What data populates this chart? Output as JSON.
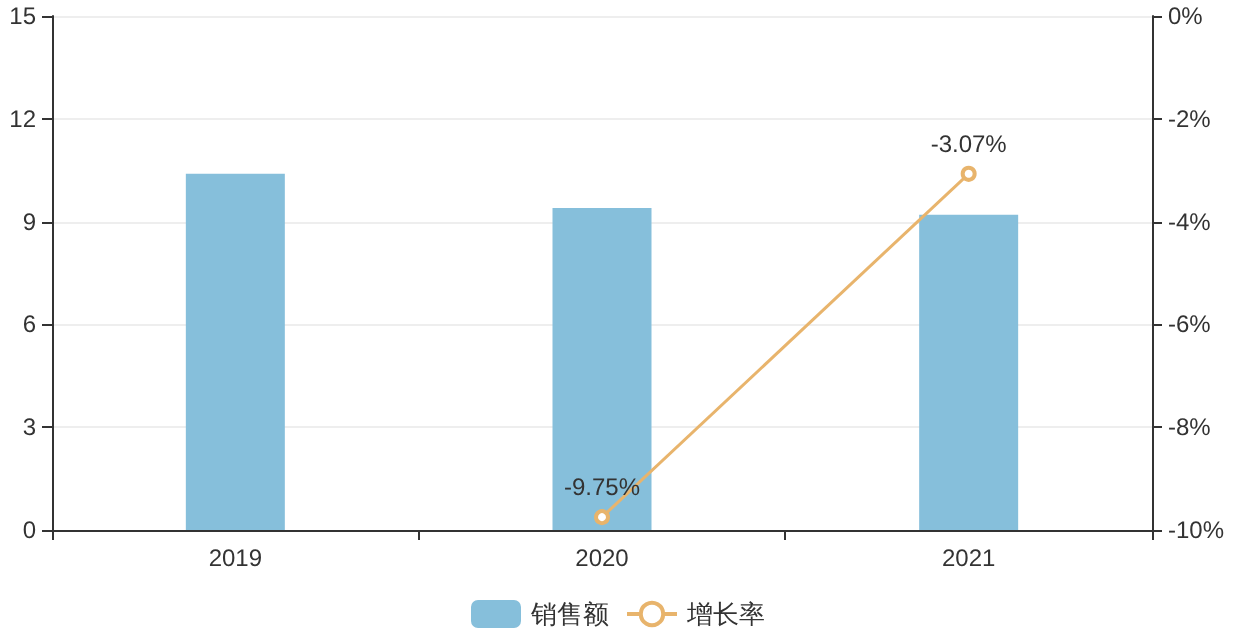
{
  "chart_data": {
    "type": "bar",
    "categories": [
      "2019",
      "2020",
      "2021"
    ],
    "series": [
      {
        "name": "销售额",
        "color": "#86bfdb",
        "values": [
          10.4,
          9.4,
          9.2
        ]
      },
      {
        "name": "增长率",
        "type": "line",
        "axis": "y2",
        "color": "#e8b46c",
        "marker": "circle",
        "values": [
          null,
          -9.75,
          -3.07
        ],
        "value_labels": [
          null,
          "-9.75%",
          "-3.07%"
        ]
      }
    ],
    "ylim": [
      0,
      15
    ],
    "yticks": [
      0,
      3,
      6,
      9,
      12,
      15
    ],
    "y2lim": [
      -10,
      0
    ],
    "y2ticks": [
      {
        "value": -10,
        "label": "-10%"
      },
      {
        "value": -8,
        "label": "-8%"
      },
      {
        "value": -6,
        "label": "-6%"
      },
      {
        "value": -4,
        "label": "-4%"
      },
      {
        "value": -2,
        "label": "-2%"
      },
      {
        "value": 0,
        "label": "0%"
      }
    ],
    "grid": "y",
    "legend": "bottom"
  }
}
